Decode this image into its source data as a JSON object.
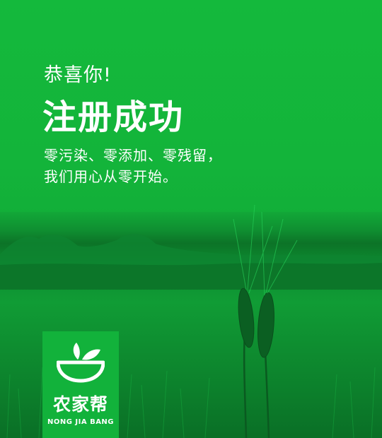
{
  "hero": {
    "greeting": "恭喜你!",
    "title": "注册成功",
    "slogan_line1": "零污染、零添加、零残留，",
    "slogan_line2": "我们用心从零开始。"
  },
  "brand": {
    "name": "农家帮",
    "pinyin": "NONG JIA BANG",
    "logo_icon": "bowl-with-leaves-icon"
  },
  "background": {
    "scene": "wheat-field-photo",
    "colors": {
      "primary_green": "#13b63b",
      "dark_green": "#0c7327"
    }
  }
}
